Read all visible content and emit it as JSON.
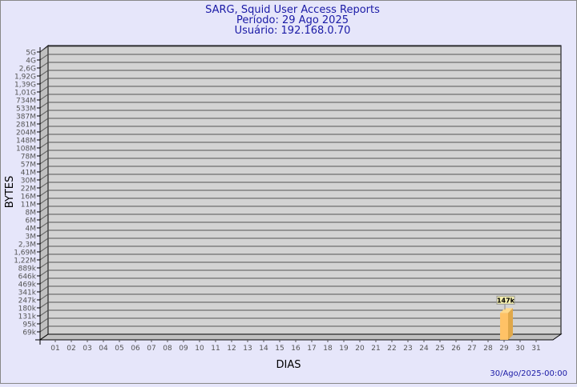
{
  "chart_data": {
    "type": "bar",
    "title": "SARG, Squid User Access Reports",
    "subtitle_period": "Período: 29 Ago 2025",
    "subtitle_user": "Usuário: 192.168.0.70",
    "xlabel": "DIAS",
    "ylabel": "BYTES",
    "y_scale": "log",
    "y_ticks": [
      "5G",
      "4G",
      "2,6G",
      "1,92G",
      "1,39G",
      "1,01G",
      "734M",
      "533M",
      "387M",
      "281M",
      "204M",
      "148M",
      "108M",
      "78M",
      "57M",
      "41M",
      "30M",
      "22M",
      "16M",
      "11M",
      "8M",
      "6M",
      "4M",
      "3M",
      "2,3M",
      "1,69M",
      "1,22M",
      "889k",
      "646k",
      "469k",
      "341k",
      "247k",
      "180k",
      "131k",
      "95k",
      "69k"
    ],
    "categories": [
      "01",
      "02",
      "03",
      "04",
      "05",
      "06",
      "07",
      "08",
      "09",
      "10",
      "11",
      "12",
      "13",
      "14",
      "15",
      "16",
      "17",
      "18",
      "19",
      "20",
      "21",
      "22",
      "23",
      "24",
      "25",
      "26",
      "27",
      "28",
      "29",
      "30",
      "31"
    ],
    "bars": [
      {
        "category": "29",
        "value": 147000,
        "label": "147k"
      }
    ],
    "grid": true,
    "bar_color": "#ffc266",
    "title_color": "#1a1aa6",
    "timestamp": "30/Ago/2025-00:00"
  }
}
